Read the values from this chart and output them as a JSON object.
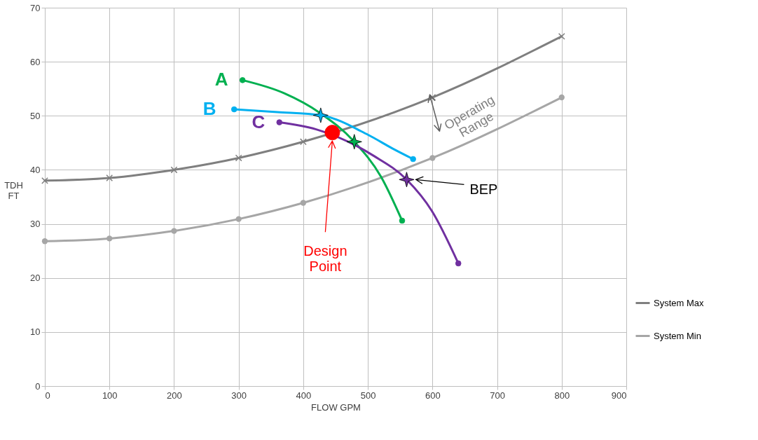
{
  "chart_data": {
    "type": "line",
    "xlabel": "FLOW GPM",
    "ylabel": "TDH\nFT",
    "xlim": [
      0,
      900
    ],
    "ylim": [
      0,
      70
    ],
    "xticks": [
      0,
      100,
      200,
      300,
      400,
      500,
      600,
      700,
      800,
      900
    ],
    "yticks": [
      0,
      10,
      20,
      30,
      40,
      50,
      60,
      70
    ],
    "grid": true,
    "legend": "bottom right",
    "line_style": "solid",
    "series": [
      {
        "name": "System Max",
        "color": "#7f7f7f",
        "marker": "cross",
        "x": [
          0,
          100,
          200,
          300,
          400,
          600,
          800
        ],
        "values": [
          38,
          38.5,
          40,
          42.2,
          45.2,
          53.4,
          64.7
        ]
      },
      {
        "name": "System Min",
        "color": "#a6a6a6",
        "marker": "circle",
        "x": [
          0,
          100,
          200,
          300,
          400,
          600,
          800
        ],
        "values": [
          26.8,
          27.3,
          28.7,
          30.9,
          33.9,
          42.2,
          53.4
        ]
      },
      {
        "color": "#00b050",
        "marker": "none",
        "x": [
          306,
          370,
          425,
          479,
          520,
          553
        ],
        "values": [
          56.6,
          54.2,
          50.6,
          45.2,
          38.8,
          30.6
        ]
      },
      {
        "color": "#00b0f0",
        "marker": "none",
        "x": [
          293,
          360,
          427,
          500,
          539,
          570
        ],
        "values": [
          51.2,
          50.7,
          50.1,
          46.5,
          43.9,
          42.0
        ]
      },
      {
        "color": "#7030a0",
        "marker": "none",
        "x": [
          363,
          420,
          509,
          560,
          599,
          640
        ],
        "values": [
          48.8,
          47.5,
          42.6,
          38.2,
          32.4,
          22.7
        ]
      },
      {
        "type": "scatter",
        "color": "#00b050",
        "marker": "circle",
        "x": [
          306,
          553
        ],
        "values": [
          56.6,
          30.6
        ]
      },
      {
        "type": "scatter",
        "color": "#00b0f0",
        "marker": "circle",
        "x": [
          293,
          570
        ],
        "values": [
          51.2,
          42.0
        ]
      },
      {
        "type": "scatter",
        "color": "#7030a0",
        "marker": "circle",
        "x": [
          363,
          640
        ],
        "values": [
          48.8,
          22.7
        ]
      },
      {
        "type": "scatter",
        "color": "#00b050",
        "marker": "star",
        "x": [
          479
        ],
        "values": [
          45.2
        ]
      },
      {
        "type": "scatter",
        "color": "#00b0f0",
        "marker": "star",
        "x": [
          427
        ],
        "values": [
          50.1
        ]
      },
      {
        "type": "scatter",
        "color": "#7030a0",
        "marker": "star",
        "x": [
          560
        ],
        "values": [
          38.2
        ]
      },
      {
        "type": "scatter",
        "color": "#ff0000",
        "marker": "circle",
        "x": [
          445
        ],
        "values": [
          46.9
        ]
      }
    ],
    "annotations": [
      {
        "text": "A",
        "x": 306,
        "y": 56.6
      },
      {
        "text": "B",
        "x": 293,
        "y": 51.2
      },
      {
        "text": "C",
        "x": 363,
        "y": 48.8
      },
      "Design\nPoint",
      "BEP",
      "Operating\nRange"
    ]
  }
}
